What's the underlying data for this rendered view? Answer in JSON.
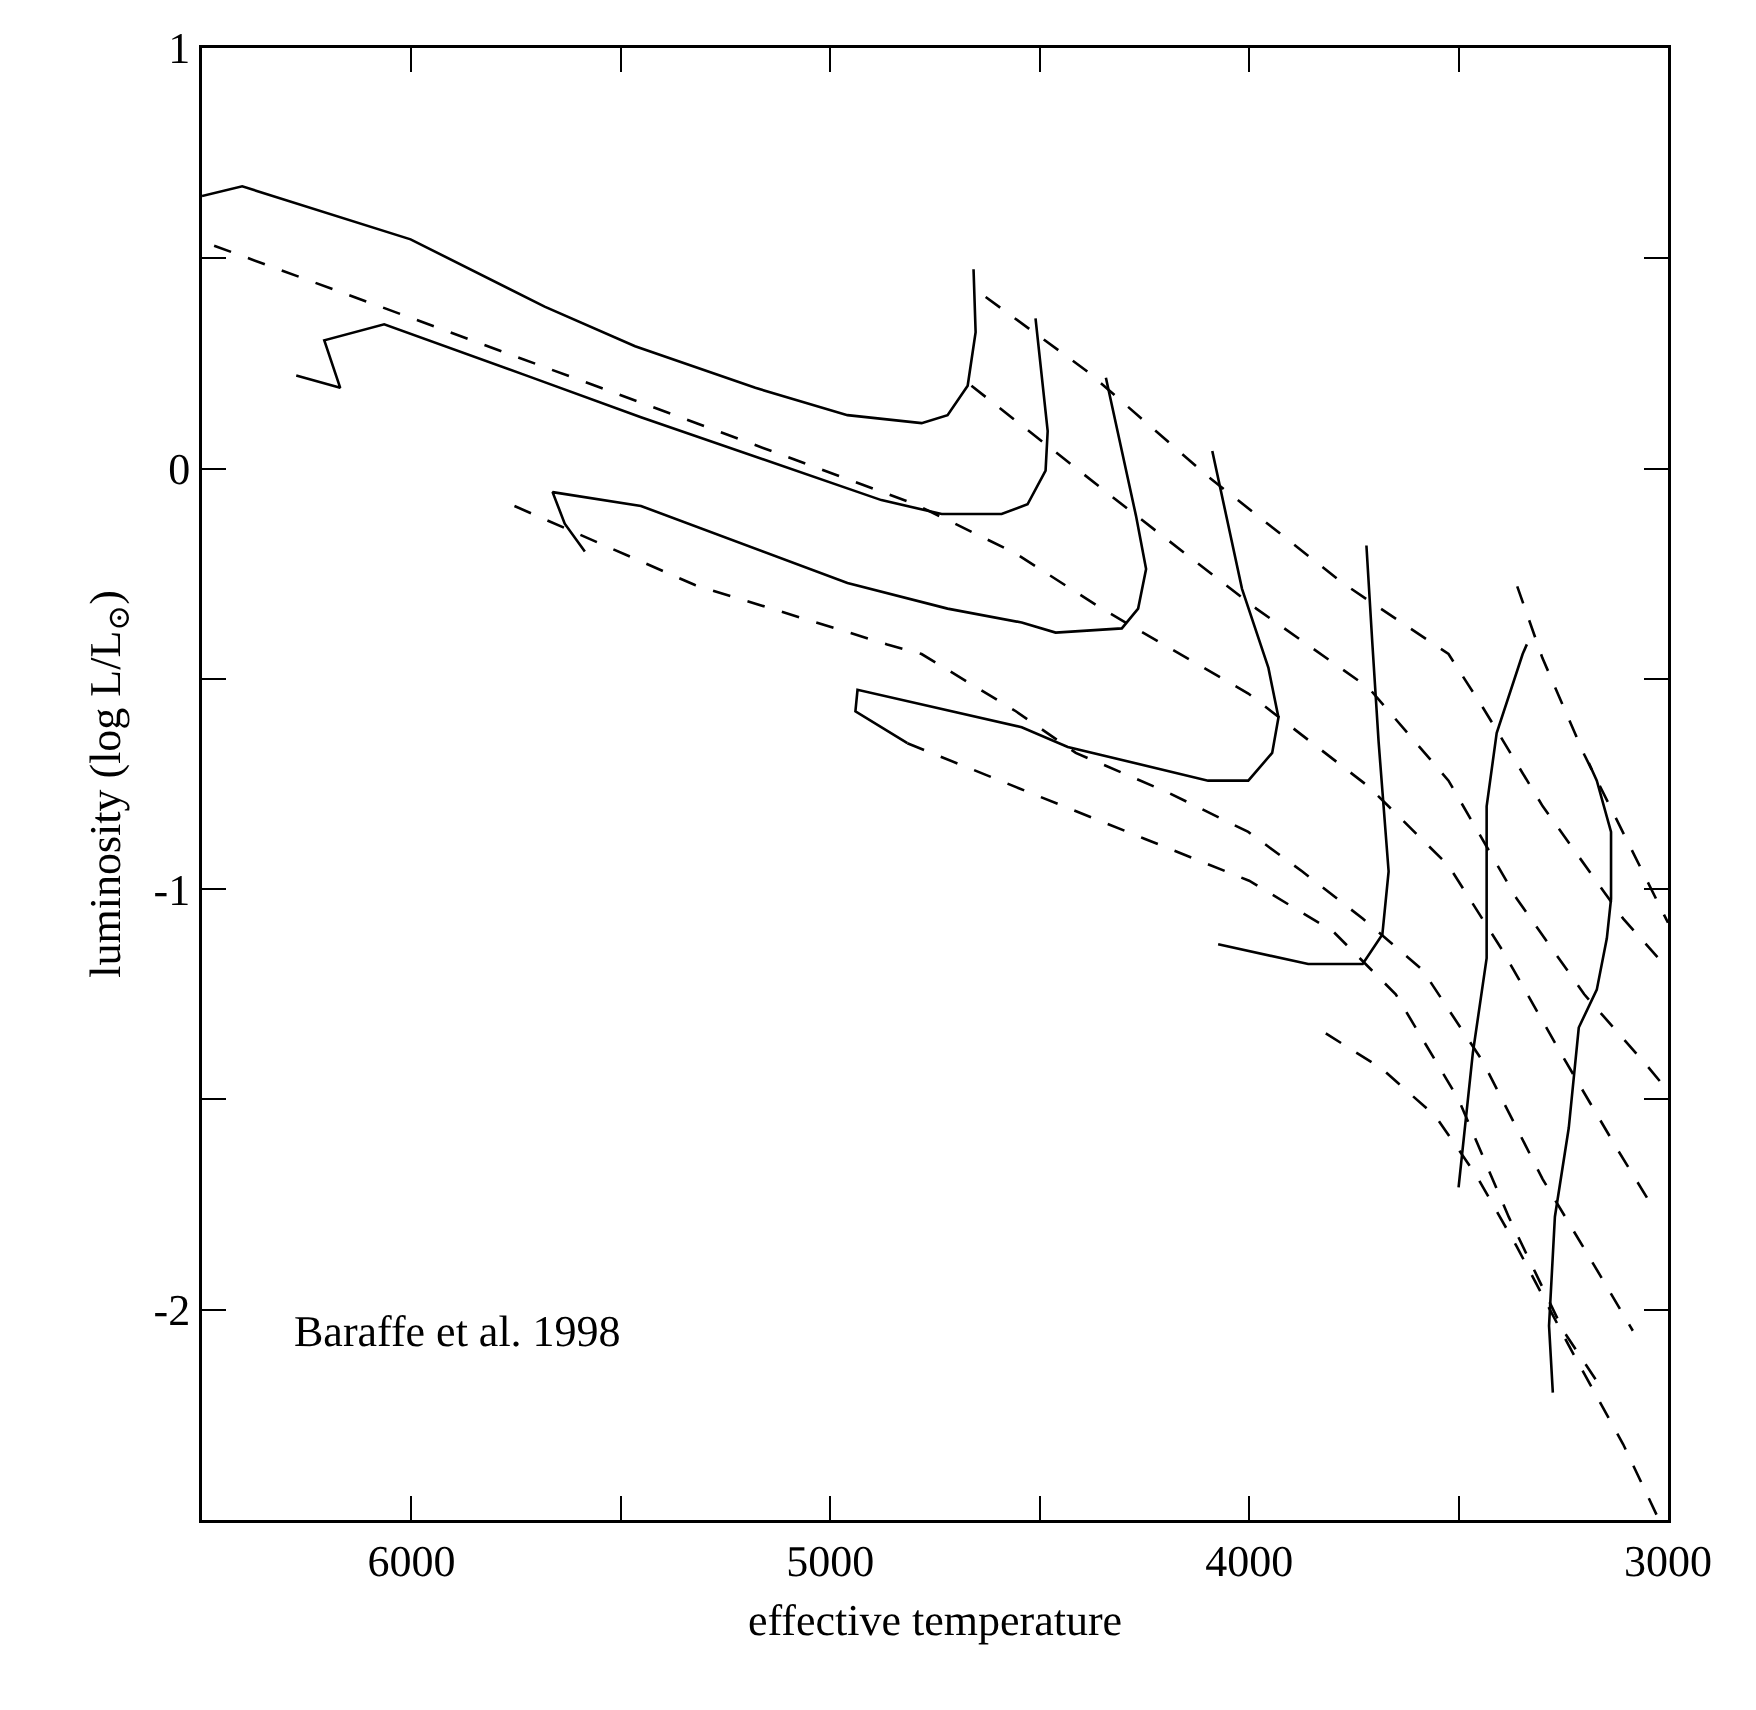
{
  "chart_data": {
    "type": "line",
    "xlabel": "effective temperature",
    "ylabel": "luminosity (log L/L$_{⊙}$)",
    "xlim": [
      6500,
      3000
    ],
    "ylim": [
      -2.5,
      1
    ],
    "xticks": [
      6000,
      {
        "value": 5500,
        "label": null
      },
      5000,
      {
        "value": 4500,
        "label": null
      },
      4000,
      {
        "value": 3500,
        "label": null
      },
      3000
    ],
    "yticks": [
      -2,
      {
        "value": -1.5,
        "label": null
      },
      -1,
      {
        "value": -0.5,
        "label": null
      },
      0,
      {
        "value": 0.5,
        "label": null
      },
      1
    ],
    "grid": false,
    "marker": "none",
    "annotations": [
      "Baraffe et al. 1998"
    ],
    "series": [
      {
        "color": "#000000",
        "line_style": "solid",
        "x": [
          6500,
          6404,
          6002,
          5682,
          5466,
          5179,
          4959,
          4782,
          4720,
          4672,
          4653,
          4658
        ],
        "values": [
          0.648,
          0.671,
          0.545,
          0.385,
          0.291,
          0.192,
          0.127,
          0.108,
          0.127,
          0.197,
          0.324,
          0.474
        ]
      },
      {
        "color": "#000000",
        "line_style": "solid",
        "x": [
          6275,
          6170,
          6208,
          6065,
          5725,
          5452,
          4878,
          4734,
          4591,
          4529,
          4486,
          4481,
          4510
        ],
        "values": [
          0.221,
          0.192,
          0.305,
          0.343,
          0.221,
          0.122,
          -0.075,
          -0.108,
          -0.108,
          -0.085,
          -0.005,
          0.089,
          0.357
        ]
      },
      {
        "color": "#000000",
        "line_style": "solid",
        "x": [
          5586,
          5634,
          5663,
          5452,
          4959,
          4720,
          4543,
          4462,
          4304,
          4265,
          4246,
          4270,
          4342
        ],
        "values": [
          -0.197,
          -0.131,
          -0.056,
          -0.089,
          -0.272,
          -0.333,
          -0.366,
          -0.39,
          -0.38,
          -0.333,
          -0.239,
          -0.113,
          0.216
        ]
      },
      {
        "color": "#000000",
        "line_style": "solid",
        "x": [
          4816,
          4940,
          4935,
          4543,
          4433,
          4098,
          4002,
          3945,
          3930,
          3954,
          4017,
          4088
        ],
        "values": [
          -0.653,
          -0.577,
          -0.526,
          -0.615,
          -0.662,
          -0.742,
          -0.742,
          -0.676,
          -0.592,
          -0.474,
          -0.286,
          0.042
        ]
      },
      {
        "color": "#000000",
        "line_style": "solid",
        "x": [
          4074,
          3859,
          3729,
          3682,
          3667,
          3691,
          3706,
          3720
        ],
        "values": [
          -1.131,
          -1.178,
          -1.178,
          -1.108,
          -0.958,
          -0.648,
          -0.413,
          -0.183
        ]
      },
      {
        "color": "#000000",
        "line_style": "solid",
        "x": [
          3500,
          3490,
          3466,
          3433,
          3433,
          3409,
          3347,
          3337
        ],
        "values": [
          -1.709,
          -1.615,
          -1.39,
          -1.164,
          -0.803,
          -0.629,
          -0.441,
          -0.418
        ]
      },
      {
        "color": "#000000",
        "line_style": "solid",
        "x": [
          3275,
          3284,
          3270,
          3237,
          3213,
          3170,
          3146,
          3136,
          3136,
          3170,
          3189
        ],
        "values": [
          -2.197,
          -2.038,
          -1.779,
          -1.568,
          -1.329,
          -1.239,
          -1.117,
          -1.023,
          -0.864,
          -0.742,
          -0.7
        ]
      },
      {
        "color": "#000000",
        "line_style": "dashed",
        "x": [
          4629,
          4385,
          4098,
          3777,
          3524,
          3442,
          3299,
          3107,
          3000
        ],
        "values": [
          0.408,
          0.23,
          -0.019,
          -0.272,
          -0.441,
          -0.568,
          -0.803,
          -1.07,
          -1.19
        ]
      },
      {
        "color": "#000000",
        "line_style": "dashed",
        "x": [
          4663,
          4304,
          3983,
          3715,
          3524,
          3361,
          3200,
          3050,
          3000
        ],
        "values": [
          0.197,
          -0.085,
          -0.333,
          -0.521,
          -0.742,
          -1.023,
          -1.25,
          -1.42,
          -1.48
        ]
      },
      {
        "color": "#000000",
        "line_style": "dashed",
        "x": [
          6471,
          6074,
          5548,
          4797,
          4557,
          4352,
          4002,
          3715,
          3524,
          3395,
          3250,
          3120,
          3040
        ],
        "values": [
          0.53,
          0.385,
          0.192,
          -0.085,
          -0.202,
          -0.333,
          -0.535,
          -0.756,
          -0.944,
          -1.146,
          -1.4,
          -1.62,
          -1.75
        ]
      },
      {
        "color": "#000000",
        "line_style": "dashed",
        "x": [
          5754,
          5323,
          4864,
          4782,
          4557,
          4414,
          4194,
          4002,
          3873,
          3729,
          3586,
          3442,
          3299,
          3155,
          3084
        ],
        "values": [
          -0.089,
          -0.277,
          -0.418,
          -0.441,
          -0.577,
          -0.676,
          -0.77,
          -0.864,
          -0.958,
          -1.07,
          -1.192,
          -1.41,
          -1.69,
          -1.93,
          -2.05
        ]
      },
      {
        "color": "#000000",
        "line_style": "dashed",
        "x": [
          4816,
          4550,
          4250,
          4000,
          3800,
          3650,
          3500,
          3380,
          3250,
          3150
        ],
        "values": [
          -0.653,
          -0.76,
          -0.88,
          -0.98,
          -1.1,
          -1.25,
          -1.5,
          -1.78,
          -2.05,
          -2.2
        ]
      },
      {
        "color": "#000000",
        "line_style": "dashed",
        "x": [
          3817,
          3683,
          3555,
          3458,
          3361,
          3237,
          3107,
          3026
        ],
        "values": [
          -1.343,
          -1.427,
          -1.54,
          -1.68,
          -1.85,
          -2.085,
          -2.32,
          -2.49
        ]
      },
      {
        "color": "#000000",
        "line_style": "dashed",
        "x": [
          3360,
          3300,
          3200,
          3100,
          3000
        ],
        "values": [
          -0.28,
          -0.45,
          -0.68,
          -0.88,
          -1.08
        ]
      }
    ]
  }
}
